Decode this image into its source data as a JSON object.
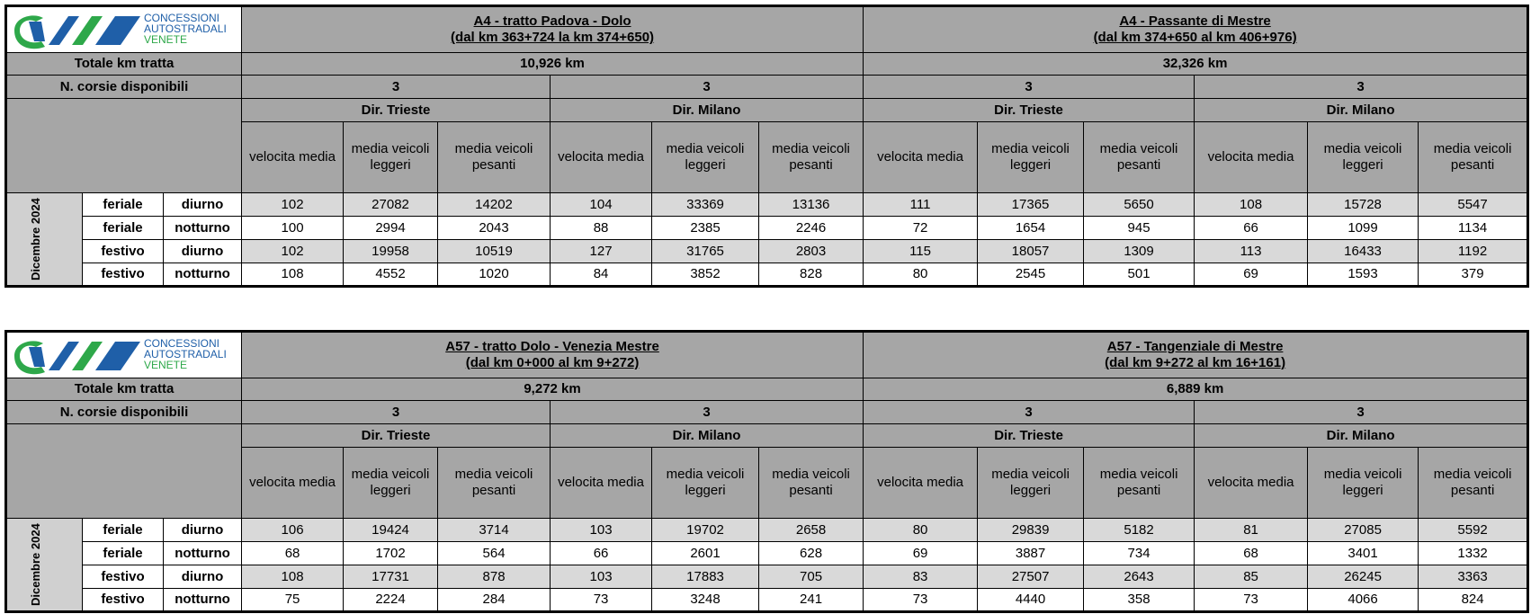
{
  "tables": [
    {
      "logo": [
        "CONCESSIONI",
        "AUTOSTRADALI",
        "VENETE"
      ],
      "total_label": "Totale km tratta",
      "lanes_label": "N. corsie disponibili",
      "period": "Dicembre 2024",
      "row_labels": [
        [
          "feriale",
          "diurno"
        ],
        [
          "feriale",
          "notturno"
        ],
        [
          "festivo",
          "diurno"
        ],
        [
          "festivo",
          "notturno"
        ]
      ],
      "sections": [
        {
          "title": "A4 - tratto Padova - Dolo",
          "subtitle": "(dal km 363+724 la km 374+650)",
          "length": "10,926 km",
          "directions": [
            {
              "lanes": 3,
              "name": "Dir. Trieste",
              "headers": [
                "velocita media",
                "media veicoli leggeri",
                "media veicoli pesanti"
              ],
              "rows": [
                [
                  102,
                  27082,
                  14202
                ],
                [
                  100,
                  2994,
                  2043
                ],
                [
                  102,
                  19958,
                  10519
                ],
                [
                  108,
                  4552,
                  1020
                ]
              ]
            },
            {
              "lanes": 3,
              "name": "Dir. Milano",
              "headers": [
                "velocita media",
                "media veicoli leggeri",
                "media veicoli pesanti"
              ],
              "rows": [
                [
                  104,
                  33369,
                  13136
                ],
                [
                  88,
                  2385,
                  2246
                ],
                [
                  127,
                  31765,
                  2803
                ],
                [
                  84,
                  3852,
                  828
                ]
              ]
            }
          ]
        },
        {
          "title": "A4 - Passante di Mestre",
          "subtitle": "(dal km 374+650 al km 406+976)",
          "length": "32,326 km",
          "directions": [
            {
              "lanes": 3,
              "name": "Dir. Trieste",
              "headers": [
                "velocita media",
                "media veicoli leggeri",
                "media veicoli pesanti"
              ],
              "rows": [
                [
                  111,
                  17365,
                  5650
                ],
                [
                  72,
                  1654,
                  945
                ],
                [
                  115,
                  18057,
                  1309
                ],
                [
                  80,
                  2545,
                  501
                ]
              ]
            },
            {
              "lanes": 3,
              "name": "Dir. Milano",
              "headers": [
                "velocita media",
                "media veicoli leggeri",
                "media veicoli pesanti"
              ],
              "rows": [
                [
                  108,
                  15728,
                  5547
                ],
                [
                  66,
                  1099,
                  1134
                ],
                [
                  113,
                  16433,
                  1192
                ],
                [
                  69,
                  1593,
                  379
                ]
              ]
            }
          ]
        }
      ]
    },
    {
      "logo": [
        "CONCESSIONI",
        "AUTOSTRADALI",
        "VENETE"
      ],
      "total_label": "Totale km tratta",
      "lanes_label": "N. corsie disponibili",
      "period": "Dicembre 2024",
      "row_labels": [
        [
          "feriale",
          "diurno"
        ],
        [
          "feriale",
          "notturno"
        ],
        [
          "festivo",
          "diurno"
        ],
        [
          "festivo",
          "notturno"
        ]
      ],
      "sections": [
        {
          "title": "A57 - tratto Dolo - Venezia Mestre",
          "subtitle": "(dal km 0+000 al km 9+272)",
          "length": "9,272 km",
          "directions": [
            {
              "lanes": 3,
              "name": "Dir. Trieste",
              "headers": [
                "velocita media",
                "media veicoli leggeri",
                "media veicoli pesanti"
              ],
              "rows": [
                [
                  106,
                  19424,
                  3714
                ],
                [
                  68,
                  1702,
                  564
                ],
                [
                  108,
                  17731,
                  878
                ],
                [
                  75,
                  2224,
                  284
                ]
              ]
            },
            {
              "lanes": 3,
              "name": "Dir. Milano",
              "headers": [
                "velocita media",
                "media veicoli leggeri",
                "media veicoli pesanti"
              ],
              "rows": [
                [
                  103,
                  19702,
                  2658
                ],
                [
                  66,
                  2601,
                  628
                ],
                [
                  103,
                  17883,
                  705
                ],
                [
                  73,
                  3248,
                  241
                ]
              ]
            }
          ]
        },
        {
          "title": "A57 - Tangenziale di Mestre",
          "subtitle": "(dal km 9+272 al km 16+161)",
          "length": "6,889 km",
          "directions": [
            {
              "lanes": 3,
              "name": "Dir. Trieste",
              "headers": [
                "velocita media",
                "media veicoli leggeri",
                "media veicoli pesanti"
              ],
              "rows": [
                [
                  80,
                  29839,
                  5182
                ],
                [
                  69,
                  3887,
                  734
                ],
                [
                  83,
                  27507,
                  2643
                ],
                [
                  73,
                  4440,
                  358
                ]
              ]
            },
            {
              "lanes": 3,
              "name": "Dir. Milano",
              "headers": [
                "velocita media",
                "media veicoli leggeri",
                "media veicoli pesanti"
              ],
              "rows": [
                [
                  81,
                  27085,
                  5592
                ],
                [
                  68,
                  3401,
                  1332
                ],
                [
                  85,
                  26245,
                  3363
                ],
                [
                  73,
                  4066,
                  824
                ]
              ]
            }
          ]
        }
      ]
    }
  ]
}
